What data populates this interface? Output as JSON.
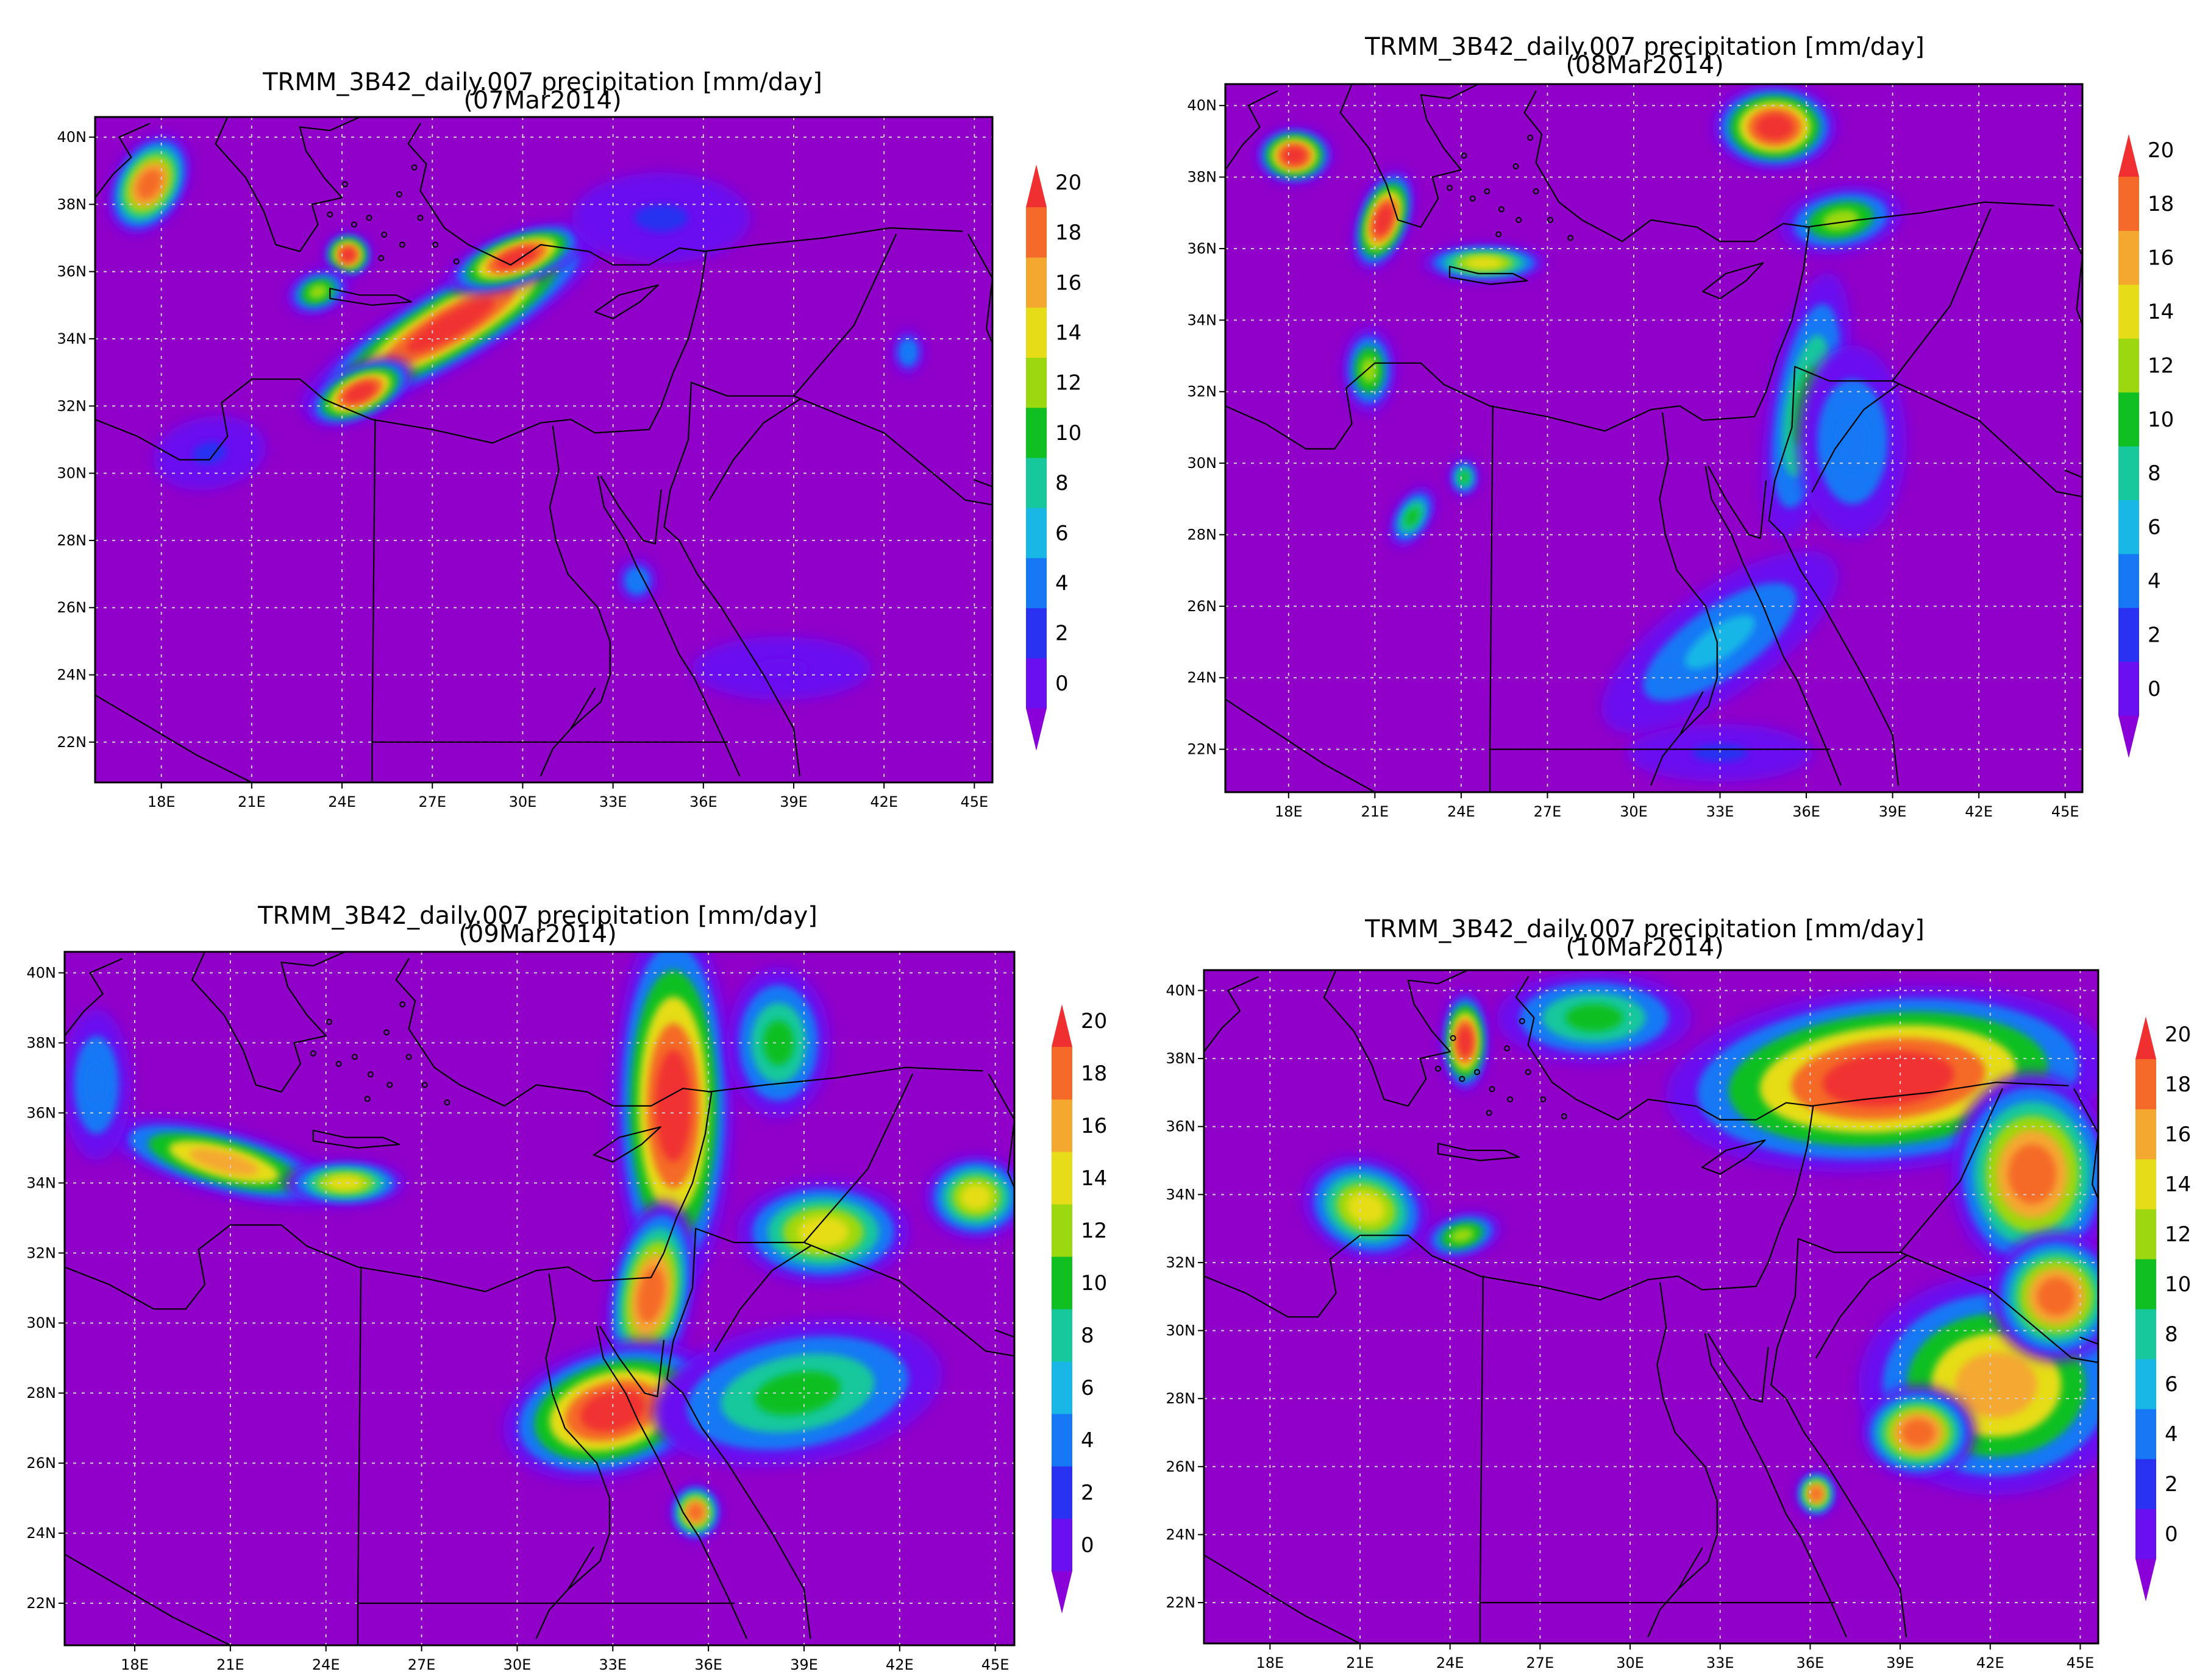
{
  "colors": {
    "background": "#9000c8",
    "scale": [
      "#8a00d8",
      "#6a10f0",
      "#2832f0",
      "#1778f5",
      "#18b7e6",
      "#16c89c",
      "#10c020",
      "#9cd810",
      "#e6dd18",
      "#f5a830",
      "#f56a28",
      "#f03030"
    ]
  },
  "colorbar": {
    "labels": [
      "0",
      "2",
      "4",
      "6",
      "8",
      "10",
      "12",
      "14",
      "16",
      "18",
      "20"
    ]
  },
  "x_ticks": [
    "18E",
    "21E",
    "24E",
    "27E",
    "30E",
    "33E",
    "36E",
    "39E",
    "42E",
    "45E"
  ],
  "y_ticks": [
    "22N",
    "24N",
    "26N",
    "28N",
    "30N",
    "32N",
    "34N",
    "36N",
    "38N",
    "40N"
  ],
  "panels": [
    {
      "title": "TRMM_3B42_daily.007 precipitation [mm/day]",
      "date": "(07Mar2014)",
      "blobs": [
        {
          "lon": 27.6,
          "lat": 34.4,
          "rx": 4.2,
          "ry": 0.9,
          "angle": -30,
          "value": 20
        },
        {
          "lon": 24.6,
          "lat": 32.4,
          "rx": 1.4,
          "ry": 0.6,
          "angle": -25,
          "value": 20
        },
        {
          "lon": 29.8,
          "lat": 36.4,
          "rx": 1.8,
          "ry": 0.6,
          "angle": -20,
          "value": 20
        },
        {
          "lon": 17.6,
          "lat": 38.6,
          "rx": 0.9,
          "ry": 1.2,
          "angle": 30,
          "value": 18
        },
        {
          "lon": 24.2,
          "lat": 36.5,
          "rx": 0.6,
          "ry": 0.5,
          "angle": 0,
          "value": 20
        },
        {
          "lon": 23.2,
          "lat": 35.4,
          "rx": 0.8,
          "ry": 0.5,
          "angle": -20,
          "value": 12
        },
        {
          "lon": 19.6,
          "lat": 30.6,
          "rx": 1.4,
          "ry": 0.8,
          "angle": -10,
          "value": 4
        },
        {
          "lon": 33.8,
          "lat": 26.8,
          "rx": 0.5,
          "ry": 0.5,
          "angle": 0,
          "value": 6
        },
        {
          "lon": 38.6,
          "lat": 24.2,
          "rx": 2.2,
          "ry": 0.7,
          "angle": 0,
          "value": 2
        },
        {
          "lon": 34.6,
          "lat": 37.6,
          "rx": 2.2,
          "ry": 1.0,
          "angle": 0,
          "value": 3
        },
        {
          "lon": 42.8,
          "lat": 33.6,
          "rx": 0.4,
          "ry": 0.5,
          "angle": 0,
          "value": 6
        }
      ]
    },
    {
      "title": "TRMM_3B42_daily.007 precipitation [mm/day]",
      "date": "(08Mar2014)",
      "blobs": [
        {
          "lon": 18.2,
          "lat": 38.6,
          "rx": 1.0,
          "ry": 0.6,
          "angle": 0,
          "value": 20
        },
        {
          "lon": 21.3,
          "lat": 36.8,
          "rx": 0.7,
          "ry": 1.1,
          "angle": 20,
          "value": 20
        },
        {
          "lon": 24.8,
          "lat": 35.6,
          "rx": 1.6,
          "ry": 0.4,
          "angle": 0,
          "value": 14
        },
        {
          "lon": 34.9,
          "lat": 39.4,
          "rx": 1.6,
          "ry": 0.9,
          "angle": 0,
          "value": 20
        },
        {
          "lon": 37.2,
          "lat": 36.8,
          "rx": 1.6,
          "ry": 0.7,
          "angle": -10,
          "value": 12
        },
        {
          "lon": 36.0,
          "lat": 31.6,
          "rx": 1.0,
          "ry": 2.8,
          "angle": 10,
          "value": 10
        },
        {
          "lon": 37.6,
          "lat": 30.6,
          "rx": 1.4,
          "ry": 2.0,
          "angle": 0,
          "value": 6
        },
        {
          "lon": 33.0,
          "lat": 25.0,
          "rx": 3.6,
          "ry": 1.1,
          "angle": -35,
          "value": 8
        },
        {
          "lon": 20.8,
          "lat": 32.6,
          "rx": 0.7,
          "ry": 0.9,
          "angle": 0,
          "value": 12
        },
        {
          "lon": 22.3,
          "lat": 28.5,
          "rx": 0.5,
          "ry": 0.7,
          "angle": 30,
          "value": 10
        },
        {
          "lon": 24.1,
          "lat": 29.6,
          "rx": 0.4,
          "ry": 0.4,
          "angle": 0,
          "value": 10
        },
        {
          "lon": 33.0,
          "lat": 21.9,
          "rx": 2.4,
          "ry": 0.6,
          "angle": 0,
          "value": 3
        }
      ]
    },
    {
      "title": "TRMM_3B42_daily.007 precipitation [mm/day]",
      "date": "(09Mar2014)",
      "blobs": [
        {
          "lon": 34.9,
          "lat": 36.2,
          "rx": 1.4,
          "ry": 4.0,
          "angle": 0,
          "value": 20
        },
        {
          "lon": 34.2,
          "lat": 30.8,
          "rx": 1.0,
          "ry": 2.0,
          "angle": 10,
          "value": 18
        },
        {
          "lon": 33.0,
          "lat": 27.5,
          "rx": 2.6,
          "ry": 1.4,
          "angle": -15,
          "value": 20
        },
        {
          "lon": 38.8,
          "lat": 28.0,
          "rx": 3.4,
          "ry": 1.5,
          "angle": -10,
          "value": 10
        },
        {
          "lon": 39.6,
          "lat": 32.6,
          "rx": 2.0,
          "ry": 1.1,
          "angle": 0,
          "value": 14
        },
        {
          "lon": 20.8,
          "lat": 34.6,
          "rx": 2.8,
          "ry": 0.7,
          "angle": 15,
          "value": 16
        },
        {
          "lon": 24.6,
          "lat": 34.0,
          "rx": 1.4,
          "ry": 0.5,
          "angle": 0,
          "value": 14
        },
        {
          "lon": 38.2,
          "lat": 38.0,
          "rx": 1.2,
          "ry": 1.6,
          "angle": 0,
          "value": 10
        },
        {
          "lon": 35.6,
          "lat": 24.6,
          "rx": 0.6,
          "ry": 0.6,
          "angle": 0,
          "value": 18
        },
        {
          "lon": 44.4,
          "lat": 33.6,
          "rx": 1.2,
          "ry": 0.9,
          "angle": 0,
          "value": 14
        },
        {
          "lon": 16.8,
          "lat": 36.8,
          "rx": 0.8,
          "ry": 1.6,
          "angle": 0,
          "value": 6
        }
      ]
    },
    {
      "title": "TRMM_3B42_daily.007 precipitation [mm/day]",
      "date": "(10Mar2014)",
      "blobs": [
        {
          "lon": 38.6,
          "lat": 37.4,
          "rx": 5.5,
          "ry": 2.0,
          "angle": -5,
          "value": 20
        },
        {
          "lon": 43.4,
          "lat": 34.6,
          "rx": 2.0,
          "ry": 2.2,
          "angle": 0,
          "value": 18
        },
        {
          "lon": 42.2,
          "lat": 28.4,
          "rx": 3.4,
          "ry": 2.4,
          "angle": 0,
          "value": 16
        },
        {
          "lon": 44.2,
          "lat": 31.0,
          "rx": 1.6,
          "ry": 1.4,
          "angle": 0,
          "value": 18
        },
        {
          "lon": 24.5,
          "lat": 38.5,
          "rx": 0.6,
          "ry": 1.1,
          "angle": 0,
          "value": 20
        },
        {
          "lon": 21.2,
          "lat": 33.6,
          "rx": 1.6,
          "ry": 1.1,
          "angle": 20,
          "value": 14
        },
        {
          "lon": 24.4,
          "lat": 32.8,
          "rx": 1.0,
          "ry": 0.5,
          "angle": -15,
          "value": 12
        },
        {
          "lon": 36.2,
          "lat": 25.2,
          "rx": 0.5,
          "ry": 0.5,
          "angle": 0,
          "value": 18
        },
        {
          "lon": 28.8,
          "lat": 39.2,
          "rx": 2.4,
          "ry": 1.0,
          "angle": 0,
          "value": 10
        },
        {
          "lon": 39.6,
          "lat": 27.0,
          "rx": 1.4,
          "ry": 1.0,
          "angle": 0,
          "value": 18
        }
      ]
    }
  ]
}
